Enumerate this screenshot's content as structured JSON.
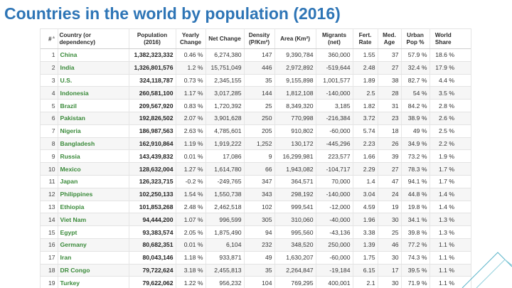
{
  "slide": {
    "title": "Countries in the world by population (2016)"
  },
  "table": {
    "headers": {
      "rank": "#",
      "country": "Country (or dependency)",
      "population": "Population (2016)",
      "yearly_change": "Yearly Change",
      "net_change": "Net Change",
      "density": "Density (P/Km²)",
      "area": "Area (Km²)",
      "migrants": "Migrants (net)",
      "fert_rate": "Fert. Rate",
      "med_age": "Med. Age",
      "urban_pop": "Urban Pop %",
      "world_share": "World Share"
    },
    "rows": [
      {
        "rank": "1",
        "country": "China",
        "population": "1,382,323,332",
        "yearly_change": "0.46 %",
        "net_change": "6,274,380",
        "density": "147",
        "area": "9,390,784",
        "migrants": "360,000",
        "fert_rate": "1.55",
        "med_age": "37",
        "urban_pop": "57.9 %",
        "world_share": "18.6 %"
      },
      {
        "rank": "2",
        "country": "India",
        "population": "1,326,801,576",
        "yearly_change": "1.2 %",
        "net_change": "15,751,049",
        "density": "446",
        "area": "2,972,892",
        "migrants": "-519,644",
        "fert_rate": "2.48",
        "med_age": "27",
        "urban_pop": "32.4 %",
        "world_share": "17.9 %"
      },
      {
        "rank": "3",
        "country": "U.S.",
        "population": "324,118,787",
        "yearly_change": "0.73 %",
        "net_change": "2,345,155",
        "density": "35",
        "area": "9,155,898",
        "migrants": "1,001,577",
        "fert_rate": "1.89",
        "med_age": "38",
        "urban_pop": "82.7 %",
        "world_share": "4.4 %"
      },
      {
        "rank": "4",
        "country": "Indonesia",
        "population": "260,581,100",
        "yearly_change": "1.17 %",
        "net_change": "3,017,285",
        "density": "144",
        "area": "1,812,108",
        "migrants": "-140,000",
        "fert_rate": "2.5",
        "med_age": "28",
        "urban_pop": "54 %",
        "world_share": "3.5 %"
      },
      {
        "rank": "5",
        "country": "Brazil",
        "population": "209,567,920",
        "yearly_change": "0.83 %",
        "net_change": "1,720,392",
        "density": "25",
        "area": "8,349,320",
        "migrants": "3,185",
        "fert_rate": "1.82",
        "med_age": "31",
        "urban_pop": "84.2 %",
        "world_share": "2.8 %"
      },
      {
        "rank": "6",
        "country": "Pakistan",
        "population": "192,826,502",
        "yearly_change": "2.07 %",
        "net_change": "3,901,628",
        "density": "250",
        "area": "770,998",
        "migrants": "-216,384",
        "fert_rate": "3.72",
        "med_age": "23",
        "urban_pop": "38.9 %",
        "world_share": "2.6 %"
      },
      {
        "rank": "7",
        "country": "Nigeria",
        "population": "186,987,563",
        "yearly_change": "2.63 %",
        "net_change": "4,785,601",
        "density": "205",
        "area": "910,802",
        "migrants": "-60,000",
        "fert_rate": "5.74",
        "med_age": "18",
        "urban_pop": "49 %",
        "world_share": "2.5 %"
      },
      {
        "rank": "8",
        "country": "Bangladesh",
        "population": "162,910,864",
        "yearly_change": "1.19 %",
        "net_change": "1,919,222",
        "density": "1,252",
        "area": "130,172",
        "migrants": "-445,296",
        "fert_rate": "2.23",
        "med_age": "26",
        "urban_pop": "34.9 %",
        "world_share": "2.2 %"
      },
      {
        "rank": "9",
        "country": "Russia",
        "population": "143,439,832",
        "yearly_change": "0.01 %",
        "net_change": "17,086",
        "density": "9",
        "area": "16,299,981",
        "migrants": "223,577",
        "fert_rate": "1.66",
        "med_age": "39",
        "urban_pop": "73.2 %",
        "world_share": "1.9 %"
      },
      {
        "rank": "10",
        "country": "Mexico",
        "population": "128,632,004",
        "yearly_change": "1.27 %",
        "net_change": "1,614,780",
        "density": "66",
        "area": "1,943,082",
        "migrants": "-104,717",
        "fert_rate": "2.29",
        "med_age": "27",
        "urban_pop": "78.3 %",
        "world_share": "1.7 %"
      },
      {
        "rank": "11",
        "country": "Japan",
        "population": "126,323,715",
        "yearly_change": "-0.2 %",
        "net_change": "-249,765",
        "density": "347",
        "area": "364,571",
        "migrants": "70,000",
        "fert_rate": "1.4",
        "med_age": "47",
        "urban_pop": "94.1 %",
        "world_share": "1.7 %"
      },
      {
        "rank": "12",
        "country": "Philippines",
        "population": "102,250,133",
        "yearly_change": "1.54 %",
        "net_change": "1,550,738",
        "density": "343",
        "area": "298,192",
        "migrants": "-140,000",
        "fert_rate": "3.04",
        "med_age": "24",
        "urban_pop": "44.8 %",
        "world_share": "1.4 %"
      },
      {
        "rank": "13",
        "country": "Ethiopia",
        "population": "101,853,268",
        "yearly_change": "2.48 %",
        "net_change": "2,462,518",
        "density": "102",
        "area": "999,541",
        "migrants": "-12,000",
        "fert_rate": "4.59",
        "med_age": "19",
        "urban_pop": "19.8 %",
        "world_share": "1.4 %"
      },
      {
        "rank": "14",
        "country": "Viet Nam",
        "population": "94,444,200",
        "yearly_change": "1.07 %",
        "net_change": "996,599",
        "density": "305",
        "area": "310,060",
        "migrants": "-40,000",
        "fert_rate": "1.96",
        "med_age": "30",
        "urban_pop": "34.1 %",
        "world_share": "1.3 %"
      },
      {
        "rank": "15",
        "country": "Egypt",
        "population": "93,383,574",
        "yearly_change": "2.05 %",
        "net_change": "1,875,490",
        "density": "94",
        "area": "995,560",
        "migrants": "-43,136",
        "fert_rate": "3.38",
        "med_age": "25",
        "urban_pop": "39.8 %",
        "world_share": "1.3 %"
      },
      {
        "rank": "16",
        "country": "Germany",
        "population": "80,682,351",
        "yearly_change": "0.01 %",
        "net_change": "6,104",
        "density": "232",
        "area": "348,520",
        "migrants": "250,000",
        "fert_rate": "1.39",
        "med_age": "46",
        "urban_pop": "77.2 %",
        "world_share": "1.1 %"
      },
      {
        "rank": "17",
        "country": "Iran",
        "population": "80,043,146",
        "yearly_change": "1.18 %",
        "net_change": "933,871",
        "density": "49",
        "area": "1,630,207",
        "migrants": "-60,000",
        "fert_rate": "1.75",
        "med_age": "30",
        "urban_pop": "74.3 %",
        "world_share": "1.1 %"
      },
      {
        "rank": "18",
        "country": "DR Congo",
        "population": "79,722,624",
        "yearly_change": "3.18 %",
        "net_change": "2,455,813",
        "density": "35",
        "area": "2,264,847",
        "migrants": "-19,184",
        "fert_rate": "6.15",
        "med_age": "17",
        "urban_pop": "39.5 %",
        "world_share": "1.1 %"
      },
      {
        "rank": "19",
        "country": "Turkey",
        "population": "79,622,062",
        "yearly_change": "1.22 %",
        "net_change": "956,232",
        "density": "104",
        "area": "769,295",
        "migrants": "400,001",
        "fert_rate": "2.1",
        "med_age": "30",
        "urban_pop": "71.9 %",
        "world_share": "1.1 %"
      }
    ]
  },
  "colors": {
    "title": "#2e75b6",
    "country_link": "#3a8a3a",
    "row_alt": "#f6f6f6"
  }
}
